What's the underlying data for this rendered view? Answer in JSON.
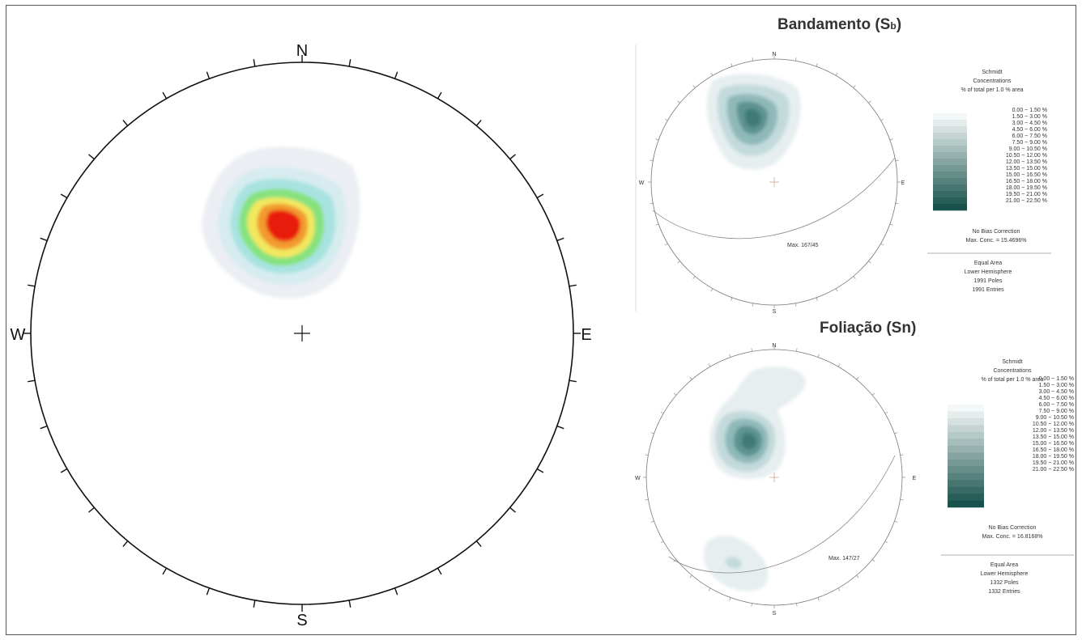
{
  "main_net": {
    "labels": {
      "n": "N",
      "s": "S",
      "e": "E",
      "w": "W"
    }
  },
  "panel_top": {
    "title": "Bandamento (Sb)",
    "labels": {
      "n": "N",
      "s": "S",
      "e": "E",
      "w": "W"
    },
    "max_label": "Max. 167/45",
    "legend": {
      "header": [
        "Schmidt",
        "Concentrations",
        "% of total per 1.0 % area"
      ],
      "ranges": [
        "0.00 ~ 1.50 %",
        "1.50 ~ 3.00 %",
        "3.00 ~ 4.50 %",
        "4.50 ~ 6.00 %",
        "6.00 ~ 7.50 %",
        "7.50 ~ 9.00 %",
        "9.00 ~ 10.50 %",
        "10.50 ~ 12.00 %",
        "12.00 ~ 13.50 %",
        "13.50 ~ 15.00 %",
        "15.00 ~ 16.50 %",
        "16.50 ~ 18.00 %",
        "18.00 ~ 19.50 %",
        "19.50 ~ 21.00 %",
        "21.00 ~ 22.50 %"
      ],
      "bias": "No Bias Correction",
      "max_conc": "Max. Conc. = 15.4696%",
      "projection": [
        "Equal Area",
        "Lower Hemisphere",
        "1991 Poles",
        "1991 Entries"
      ]
    }
  },
  "panel_bottom": {
    "title": "Foliação (Sn)",
    "labels": {
      "n": "N",
      "s": "S",
      "e": "E",
      "w": "W"
    },
    "max_label": "Max. 147/27",
    "legend": {
      "header": [
        "Schmidt",
        "Concentrations",
        "% of total per 1.0 % area"
      ],
      "ranges": [
        "0.00 ~ 1.50 %",
        "1.50 ~ 3.00 %",
        "3.00 ~ 4.50 %",
        "4.50 ~ 6.00 %",
        "6.00 ~ 7.50 %",
        "7.50 ~ 9.00 %",
        "9.00 ~ 10.50 %",
        "10.50 ~ 12.00 %",
        "12.00 ~ 13.50 %",
        "13.50 ~ 15.00 %",
        "15.00 ~ 16.50 %",
        "16.50 ~ 18.00 %",
        "18.00 ~ 19.50 %",
        "19.50 ~ 21.00 %",
        "21.00 ~ 22.50 %"
      ],
      "bias": "No Bias Correction",
      "max_conc": "Max. Conc. = 16.8168%",
      "projection": [
        "Equal Area",
        "Lower Hemisphere",
        "1332 Poles",
        "1332 Entries"
      ]
    }
  }
}
